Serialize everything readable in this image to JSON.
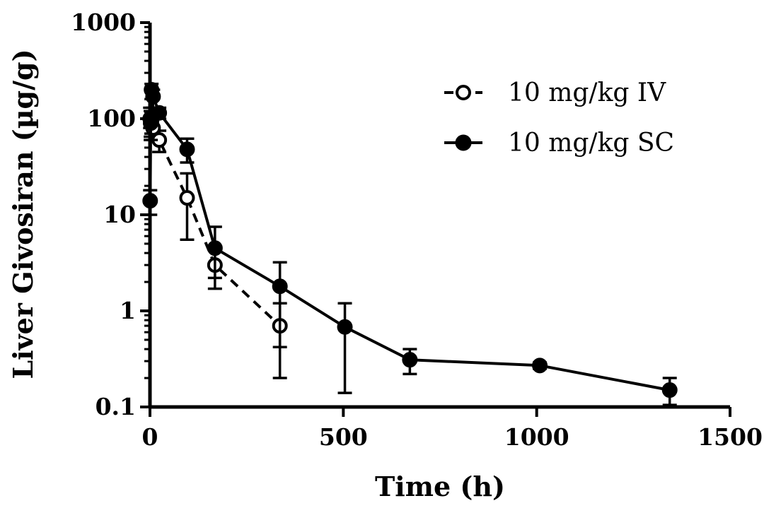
{
  "chart_data": {
    "type": "line",
    "title": "",
    "xlabel": "Time (h)",
    "ylabel": "Liver Givosiran (µg/g)",
    "xscale": "linear",
    "yscale": "log",
    "xlim": [
      0,
      1500
    ],
    "ylim": [
      0.1,
      1000
    ],
    "xticks": [
      0,
      500,
      1000,
      1500
    ],
    "xtick_labels": [
      "0",
      "500",
      "1000",
      "1500"
    ],
    "yticks": [
      0.1,
      1,
      10,
      100,
      1000
    ],
    "ytick_labels": [
      "0.1",
      "1",
      "10",
      "100",
      "1000"
    ],
    "legend_position": "top-right",
    "series": [
      {
        "name": "10 mg/kg IV",
        "marker": "open-circle",
        "line": "dashed",
        "color": "#000000",
        "x": [
          0.5,
          2,
          4,
          8,
          24,
          96,
          168,
          336
        ],
        "y": [
          100,
          90,
          95,
          80,
          60,
          15,
          3,
          0.7
        ],
        "err_low": [
          80,
          65,
          70,
          60,
          45,
          5.5,
          1.7,
          0.2
        ],
        "err_high": [
          130,
          120,
          115,
          100,
          75,
          27,
          4.5,
          1.2
        ]
      },
      {
        "name": "10 mg/kg SC",
        "marker": "filled-circle",
        "line": "solid",
        "color": "#000000",
        "x": [
          0.5,
          2,
          4,
          8,
          24,
          96,
          168,
          336,
          504,
          672,
          1008,
          1344
        ],
        "y": [
          14,
          90,
          200,
          170,
          115,
          48,
          4.5,
          1.8,
          0.68,
          0.31,
          0.27,
          0.15
        ],
        "err_low": [
          10,
          60,
          160,
          130,
          100,
          35,
          2.2,
          0.42,
          0.14,
          0.22,
          0.25,
          0.105
        ],
        "err_high": [
          18,
          120,
          230,
          200,
          130,
          62,
          7.5,
          3.2,
          1.2,
          0.4,
          0.29,
          0.2
        ]
      }
    ]
  }
}
